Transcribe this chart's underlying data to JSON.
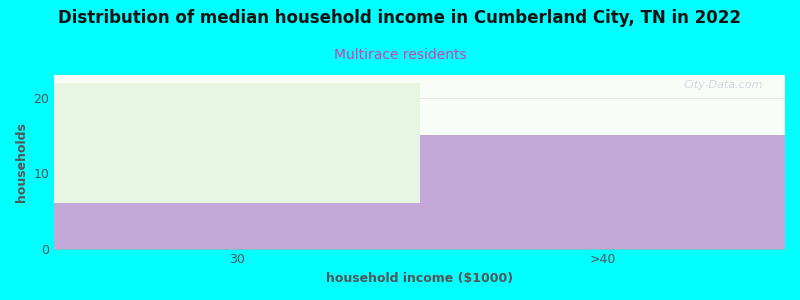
{
  "categories": [
    "30",
    ">40"
  ],
  "green_values": [
    16,
    0
  ],
  "purple_values": [
    6,
    15
  ],
  "bar_width": 1.0,
  "green_color": "#e8f5e2",
  "purple_color": "#c4a8d8",
  "title": "Distribution of median household income in Cumberland City, TN in 2022",
  "subtitle": "Multirace residents",
  "xlabel": "household income ($1000)",
  "ylabel": "households",
  "ylim": [
    0,
    23
  ],
  "yticks": [
    0,
    10,
    20
  ],
  "title_fontsize": 12,
  "subtitle_fontsize": 10,
  "subtitle_color": "#cc44aa",
  "label_fontsize": 9,
  "axis_label_color": "#555555",
  "tick_color": "#555555",
  "title_color": "#111111",
  "background_color": "#00ffff",
  "plot_bg_color": "#f8fdf8",
  "watermark": "City-Data.com"
}
